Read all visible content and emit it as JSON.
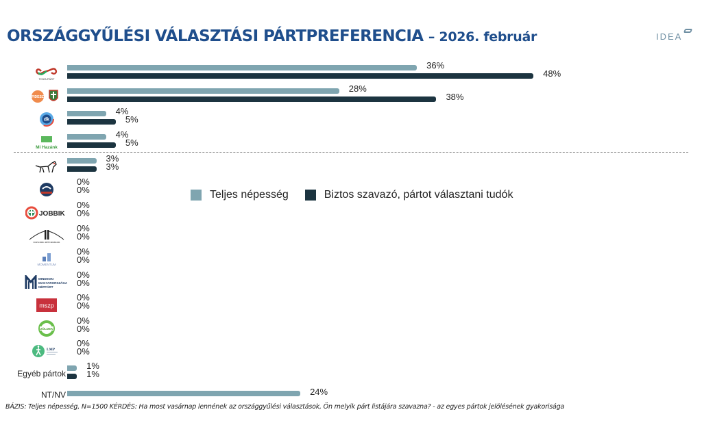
{
  "header": {
    "title_main": "ORSZÁGGYŰLÉSI VÁLASZTÁSI PÁRTPREFERENCIA",
    "title_sub": "– 2026. február",
    "brand_logo": "IDEA"
  },
  "legend": {
    "items": [
      {
        "label": "Teljes népesség",
        "color": "#7fa5b0"
      },
      {
        "label": "Biztos szavazó, pártot választani tudók",
        "color": "#1c3440"
      }
    ]
  },
  "footer": {
    "text": "BÁZIS: Teljes népesség, N=1500  KÉRDÉS:  Ha most vasárnap lennének az országgyűlési választások, Ön melyik párt listájára szavazna? - az egyes pártok jelölésének gyakorisága"
  },
  "rows": [
    {
      "icon": "tisza-part-logo",
      "logo_text": "TISZA PÁRT",
      "v1": "36%",
      "v2": "48%"
    },
    {
      "icon": "fidesz-kdnp-logo",
      "logo_text": "FIDESZ",
      "v1": "28%",
      "v2": "38%"
    },
    {
      "icon": "dk-logo",
      "logo_text": "dk",
      "v1": "4%",
      "v2": "5%"
    },
    {
      "icon": "mi-hazank-logo",
      "logo_text": "Mi Hazánk",
      "v1": "4%",
      "v2": "5%"
    },
    {
      "icon": "mkkp-dog-logo",
      "logo_text": "",
      "v1": "3%",
      "v2": "3%"
    },
    {
      "icon": "munkaspart-logo",
      "logo_text": "",
      "v1": "0%",
      "v2": "0%"
    },
    {
      "icon": "jobbik-logo",
      "logo_text": "JOBBIK",
      "v1": "0%",
      "v2": "0%"
    },
    {
      "icon": "masodik-reformkor-logo",
      "logo_text": "MÁSODIK REFORMKOR",
      "v1": "0%",
      "v2": "0%"
    },
    {
      "icon": "momentum-logo",
      "logo_text": "MOMENTUM",
      "v1": "0%",
      "v2": "0%"
    },
    {
      "icon": "mmn-logo",
      "logo_text": "MINDENKI MAGYARORSZÁGA NÉPPÁRT",
      "v1": "0%",
      "v2": "0%"
    },
    {
      "icon": "mszp-logo",
      "logo_text": "mszp",
      "v1": "0%",
      "v2": "0%"
    },
    {
      "icon": "zoldek-logo",
      "logo_text": "ZÖLDEK",
      "v1": "0%",
      "v2": "0%"
    },
    {
      "icon": "lmp-logo",
      "logo_text": "LMP",
      "v1": "0%",
      "v2": "0%"
    },
    {
      "icon": "",
      "label": "Egyéb pártok",
      "v1": "1%",
      "v2": "1%"
    },
    {
      "icon": "",
      "label": "NT/NV",
      "v1": "24%"
    }
  ],
  "chart_data": {
    "type": "bar",
    "orientation": "horizontal",
    "title": "ORSZÁGGYŰLÉSI VÁLASZTÁSI PÁRTPREFERENCIA – 2026. február",
    "categories": [
      "TISZA Párt",
      "Fidesz-KDNP",
      "DK",
      "Mi Hazánk",
      "MKKP",
      "Munkáspárt",
      "Jobbik",
      "Második Reformkor",
      "Momentum",
      "Mindenki Magyarországa Néppárt",
      "MSZP",
      "Zöldek",
      "LMP",
      "Egyéb pártok",
      "NT/NV"
    ],
    "series": [
      {
        "name": "Teljes népesség",
        "color": "#7fa5b0",
        "values": [
          36,
          28,
          4,
          4,
          3,
          0,
          0,
          0,
          0,
          0,
          0,
          0,
          0,
          1,
          24
        ]
      },
      {
        "name": "Biztos szavazó, pártot választani tudók",
        "color": "#1c3440",
        "values": [
          48,
          38,
          5,
          5,
          3,
          0,
          0,
          0,
          0,
          0,
          0,
          0,
          0,
          1,
          null
        ]
      }
    ],
    "xlabel": "",
    "ylabel": "",
    "xlim": [
      0,
      50
    ],
    "grid": false,
    "legend_position": "center-right",
    "annotations": [
      "Dashed separator line between Mi Hazánk and MKKP"
    ],
    "note": "BÁZIS: Teljes népesség, N=1500"
  }
}
